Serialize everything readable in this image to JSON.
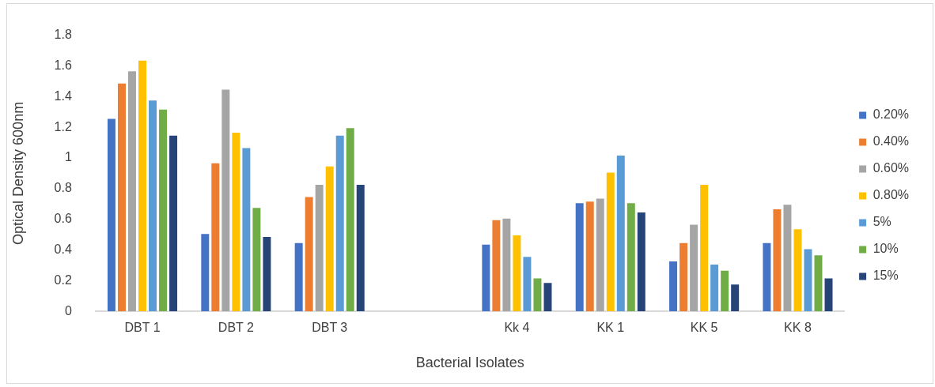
{
  "chart_data": {
    "type": "bar",
    "xlabel": "Bacterial Isolates",
    "ylabel": "Optical Density 600nm",
    "categories": [
      "DBT 1",
      "DBT 2",
      "DBT 3",
      null,
      "Kk 4",
      "KK 1",
      "KK 5",
      "KK 8"
    ],
    "series": [
      {
        "name": "0.20%",
        "color": "#4472c4",
        "values": [
          1.26,
          0.51,
          0.45,
          null,
          0.44,
          0.71,
          0.33,
          0.45
        ]
      },
      {
        "name": "0.40%",
        "color": "#ed7d31",
        "values": [
          1.49,
          0.97,
          0.75,
          null,
          0.6,
          0.72,
          0.45,
          0.67
        ]
      },
      {
        "name": "0.60%",
        "color": "#a5a5a5",
        "values": [
          1.57,
          1.45,
          0.83,
          null,
          0.61,
          0.74,
          0.57,
          0.7
        ]
      },
      {
        "name": "0.80%",
        "color": "#ffc000",
        "values": [
          1.64,
          1.17,
          0.95,
          null,
          0.5,
          0.91,
          0.83,
          0.54
        ]
      },
      {
        "name": "5%",
        "color": "#5b9bd5",
        "values": [
          1.38,
          1.07,
          1.15,
          null,
          0.36,
          1.02,
          0.31,
          0.41
        ]
      },
      {
        "name": "10%",
        "color": "#70ad47",
        "values": [
          1.32,
          0.68,
          1.2,
          null,
          0.22,
          0.71,
          0.27,
          0.37
        ]
      },
      {
        "name": "15%",
        "color": "#264478",
        "values": [
          1.15,
          0.49,
          0.83,
          null,
          0.19,
          0.65,
          0.18,
          0.22
        ]
      }
    ],
    "ylim": [
      0,
      1.8
    ],
    "yticks": [
      0,
      0.2,
      0.4,
      0.6,
      0.8,
      1,
      1.2,
      1.4,
      1.6,
      1.8
    ],
    "grid": false,
    "legend": "right"
  }
}
